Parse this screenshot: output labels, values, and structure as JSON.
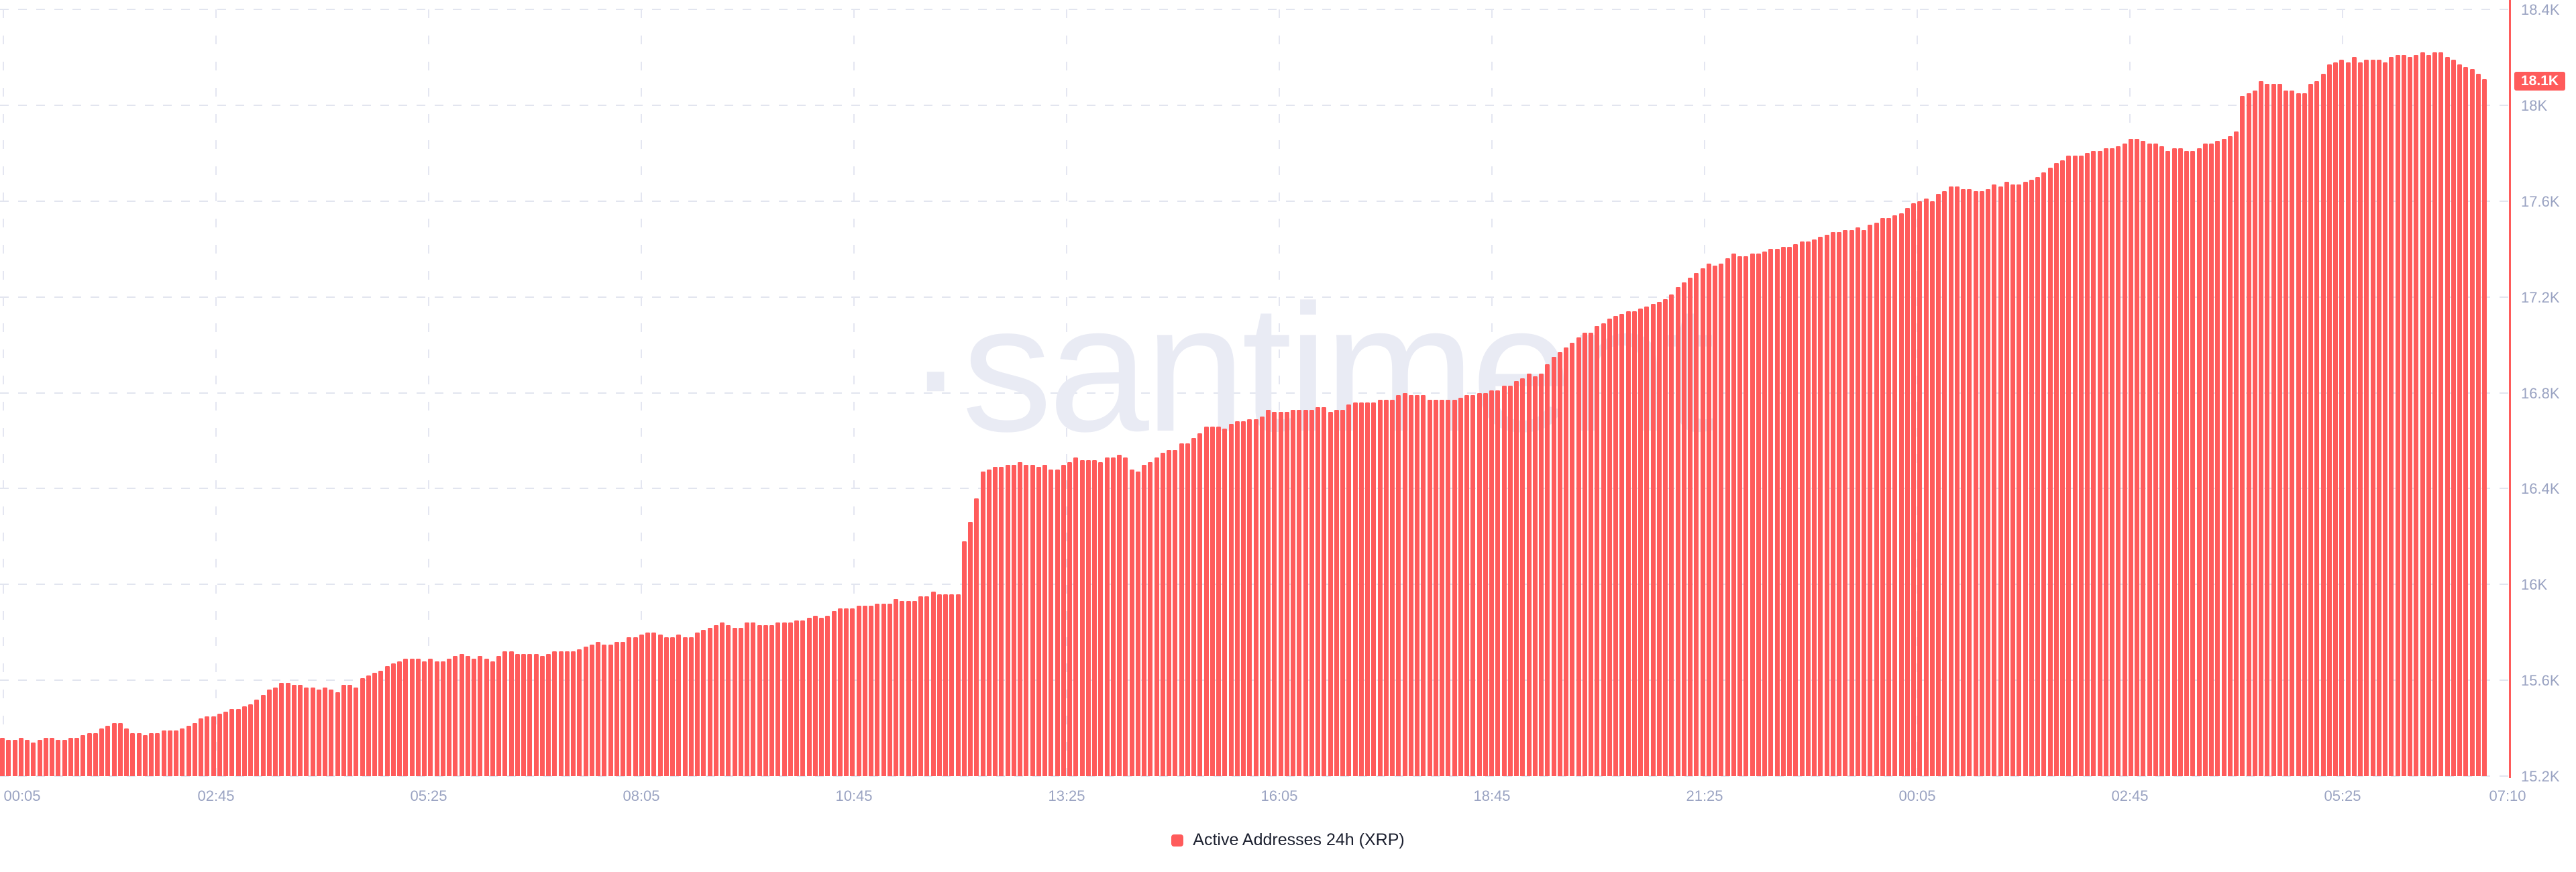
{
  "page": {
    "background": "#ffffff",
    "watermark_text": "·santiment"
  },
  "colors": {
    "bar": "#ff5b5b",
    "badge_bg": "#ff5b5b",
    "badge_text": "#ffffff",
    "cursor_line": "#ff5b5b",
    "axis_label": "#9aa3c2",
    "legend_text": "#1d2130",
    "gridline": "#e2e5ef",
    "watermark": "#e9ebf4"
  },
  "legend": {
    "label": "Active Addresses 24h (XRP)"
  },
  "current_value_badge": {
    "text": "18.1K"
  },
  "chart_data": {
    "type": "bar",
    "title": "Active Addresses 24h (XRP)",
    "unit": "K addresses",
    "grid": "dashed",
    "legend_position": "bottom-center",
    "current_value_k": 18.1,
    "y_axis": {
      "tick_labels": [
        "18.4K",
        "18K",
        "17.6K",
        "17.2K",
        "16.8K",
        "16.4K",
        "16K",
        "15.6K",
        "15.2K"
      ],
      "tick_values_k": [
        18.4,
        18.0,
        17.6,
        17.2,
        16.8,
        16.4,
        16.0,
        15.6,
        15.2
      ],
      "range_k": [
        15.2,
        18.4
      ],
      "side": "right"
    },
    "x_axis": {
      "tick_labels": [
        "00:05",
        "02:45",
        "05:25",
        "08:05",
        "10:45",
        "13:25",
        "16:05",
        "18:45",
        "21:25",
        "00:05",
        "02:45",
        "05:25",
        "07:10"
      ]
    },
    "values_k": [
      15.36,
      15.35,
      15.35,
      15.36,
      15.35,
      15.34,
      15.35,
      15.36,
      15.36,
      15.35,
      15.35,
      15.36,
      15.36,
      15.37,
      15.38,
      15.38,
      15.4,
      15.41,
      15.42,
      15.42,
      15.4,
      15.38,
      15.38,
      15.37,
      15.38,
      15.38,
      15.39,
      15.39,
      15.39,
      15.4,
      15.41,
      15.42,
      15.44,
      15.45,
      15.45,
      15.46,
      15.47,
      15.48,
      15.48,
      15.49,
      15.5,
      15.52,
      15.54,
      15.56,
      15.57,
      15.59,
      15.59,
      15.58,
      15.58,
      15.57,
      15.57,
      15.56,
      15.57,
      15.56,
      15.55,
      15.58,
      15.58,
      15.57,
      15.61,
      15.62,
      15.63,
      15.64,
      15.66,
      15.67,
      15.68,
      15.69,
      15.69,
      15.69,
      15.68,
      15.69,
      15.68,
      15.68,
      15.69,
      15.7,
      15.71,
      15.7,
      15.69,
      15.7,
      15.69,
      15.68,
      15.7,
      15.72,
      15.72,
      15.71,
      15.71,
      15.71,
      15.71,
      15.7,
      15.71,
      15.72,
      15.72,
      15.72,
      15.72,
      15.73,
      15.74,
      15.75,
      15.76,
      15.75,
      15.75,
      15.76,
      15.76,
      15.78,
      15.78,
      15.79,
      15.8,
      15.8,
      15.79,
      15.78,
      15.78,
      15.79,
      15.78,
      15.78,
      15.8,
      15.81,
      15.82,
      15.83,
      15.84,
      15.83,
      15.82,
      15.82,
      15.84,
      15.84,
      15.83,
      15.83,
      15.83,
      15.84,
      15.84,
      15.84,
      15.85,
      15.85,
      15.86,
      15.87,
      15.86,
      15.87,
      15.89,
      15.9,
      15.9,
      15.9,
      15.91,
      15.91,
      15.91,
      15.92,
      15.92,
      15.92,
      15.94,
      15.93,
      15.93,
      15.93,
      15.95,
      15.95,
      15.97,
      15.96,
      15.96,
      15.96,
      15.96,
      16.18,
      16.26,
      16.36,
      16.47,
      16.48,
      16.49,
      16.49,
      16.5,
      16.5,
      16.51,
      16.5,
      16.5,
      16.49,
      16.5,
      16.48,
      16.48,
      16.5,
      16.51,
      16.53,
      16.52,
      16.52,
      16.52,
      16.51,
      16.53,
      16.53,
      16.54,
      16.53,
      16.48,
      16.47,
      16.5,
      16.51,
      16.53,
      16.55,
      16.56,
      16.56,
      16.59,
      16.59,
      16.61,
      16.63,
      16.66,
      16.66,
      16.66,
      16.65,
      16.67,
      16.68,
      16.68,
      16.69,
      16.69,
      16.7,
      16.73,
      16.72,
      16.72,
      16.72,
      16.73,
      16.73,
      16.73,
      16.73,
      16.74,
      16.74,
      16.72,
      16.73,
      16.73,
      16.75,
      16.76,
      16.76,
      16.76,
      16.76,
      16.77,
      16.77,
      16.77,
      16.79,
      16.8,
      16.79,
      16.79,
      16.79,
      16.77,
      16.77,
      16.77,
      16.77,
      16.77,
      16.78,
      16.79,
      16.79,
      16.8,
      16.8,
      16.81,
      16.81,
      16.83,
      16.83,
      16.85,
      16.86,
      16.88,
      16.87,
      16.88,
      16.92,
      16.95,
      16.97,
      16.99,
      17.01,
      17.03,
      17.05,
      17.05,
      17.08,
      17.09,
      17.11,
      17.12,
      17.13,
      17.14,
      17.14,
      17.15,
      17.16,
      17.17,
      17.18,
      17.19,
      17.21,
      17.24,
      17.26,
      17.28,
      17.3,
      17.32,
      17.34,
      17.33,
      17.34,
      17.36,
      17.38,
      17.37,
      17.37,
      17.38,
      17.38,
      17.39,
      17.4,
      17.4,
      17.41,
      17.41,
      17.42,
      17.43,
      17.43,
      17.44,
      17.45,
      17.46,
      17.47,
      17.47,
      17.48,
      17.48,
      17.49,
      17.48,
      17.5,
      17.51,
      17.53,
      17.53,
      17.54,
      17.55,
      17.57,
      17.59,
      17.6,
      17.61,
      17.6,
      17.63,
      17.64,
      17.66,
      17.66,
      17.65,
      17.65,
      17.64,
      17.64,
      17.65,
      17.67,
      17.66,
      17.68,
      17.67,
      17.67,
      17.68,
      17.69,
      17.7,
      17.72,
      17.74,
      17.76,
      17.77,
      17.79,
      17.79,
      17.79,
      17.8,
      17.81,
      17.81,
      17.82,
      17.82,
      17.83,
      17.84,
      17.86,
      17.86,
      17.85,
      17.84,
      17.84,
      17.83,
      17.81,
      17.82,
      17.82,
      17.81,
      17.81,
      17.82,
      17.84,
      17.84,
      17.85,
      17.86,
      17.87,
      17.89,
      18.04,
      18.05,
      18.06,
      18.1,
      18.09,
      18.09,
      18.09,
      18.06,
      18.06,
      18.05,
      18.05,
      18.09,
      18.1,
      18.13,
      18.17,
      18.18,
      18.19,
      18.18,
      18.2,
      18.18,
      18.19,
      18.19,
      18.19,
      18.18,
      18.2,
      18.21,
      18.21,
      18.2,
      18.21,
      18.22,
      18.21,
      18.22,
      18.22,
      18.2,
      18.19,
      18.17,
      18.16,
      18.15,
      18.13,
      18.11
    ]
  }
}
